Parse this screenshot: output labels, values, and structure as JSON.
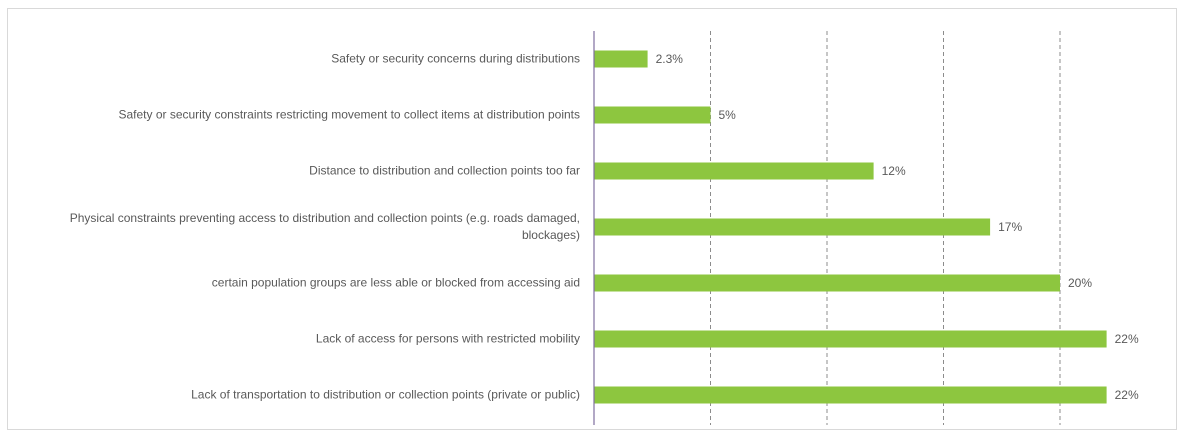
{
  "chart_data": {
    "type": "bar",
    "orientation": "horizontal",
    "categories": [
      "Safety or security concerns during distributions",
      "Safety or security constraints restricting movement to collect items at distribution points",
      "Distance to distribution and collection points too far",
      "Physical constraints preventing access to distribution and collection points (e.g. roads damaged, blockages)",
      "certain population groups are less able or blocked from accessing aid",
      "Lack of access for persons with restricted mobility",
      "Lack of transportation to distribution or collection points (private or public)"
    ],
    "values": [
      2.3,
      5,
      12,
      17,
      20,
      22,
      22
    ],
    "value_labels": [
      "2.3%",
      "5%",
      "12%",
      "17%",
      "20%",
      "22%",
      "22%"
    ],
    "color": "#8dc63f",
    "xlim": [
      0,
      25
    ],
    "xticks": [
      5,
      10,
      15,
      20
    ],
    "grid": true
  }
}
